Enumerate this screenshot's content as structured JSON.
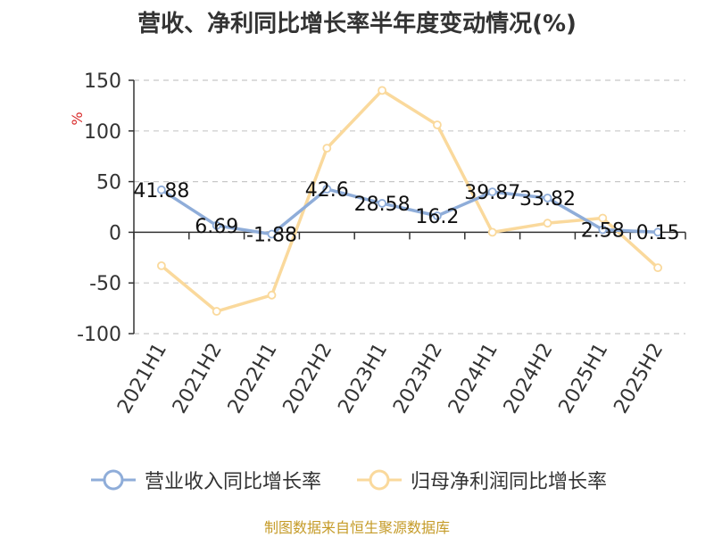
{
  "chart_data": {
    "type": "line",
    "title": "营收、净利同比增长率半年度变动情况(%)",
    "ylabel": "%",
    "xlabel": "",
    "categories": [
      "2021H1",
      "2021H2",
      "2022H1",
      "2022H2",
      "2023H1",
      "2023H2",
      "2024H1",
      "2024H2",
      "2025H1",
      "2025H2"
    ],
    "y_ticks": [
      150,
      100,
      50,
      0,
      -50,
      -100
    ],
    "ylim": [
      -100,
      150
    ],
    "grid": true,
    "legend_position": "bottom",
    "series": [
      {
        "name": "营业收入同比增长率",
        "color": "#8fadd9",
        "values": [
          41.88,
          6.69,
          -1.88,
          42.6,
          28.58,
          16.2,
          39.87,
          33.82,
          2.58,
          0.15
        ],
        "data_labels": [
          "41.88",
          "6.69",
          "-1.88",
          "42.6",
          "28.58",
          "16.2",
          "39.87",
          "33.82",
          "2.58",
          "0.15"
        ]
      },
      {
        "name": "归母净利润同比增长率",
        "color": "#fad99c",
        "values": [
          -33,
          -78,
          -62,
          83,
          140,
          106,
          0,
          9,
          14,
          -35
        ]
      }
    ]
  },
  "source": "制图数据来自恒生聚源数据库"
}
